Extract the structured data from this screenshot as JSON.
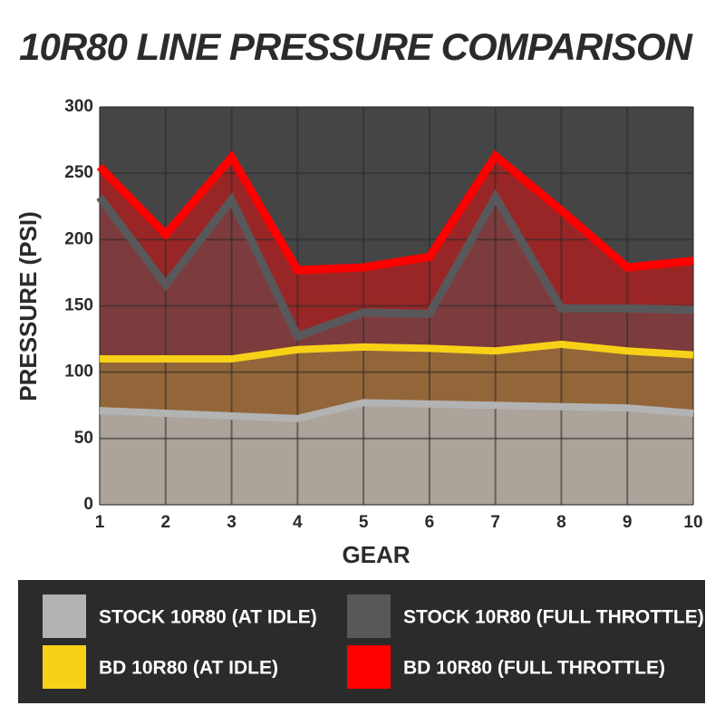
{
  "chart_data": {
    "type": "area",
    "title": "10R80 LINE PRESSURE COMPARISON",
    "x_label": "GEAR",
    "y_label": "PRESSURE (PSI)",
    "x": [
      1,
      2,
      3,
      4,
      5,
      6,
      7,
      8,
      9,
      10
    ],
    "xlim": [
      1,
      10
    ],
    "xticks": [
      1,
      2,
      3,
      4,
      5,
      6,
      7,
      8,
      9,
      10
    ],
    "ylim": [
      0,
      300
    ],
    "yticks": [
      0,
      50,
      100,
      150,
      200,
      250,
      300
    ],
    "grid": true,
    "series": [
      {
        "name": "STOCK 10R80 (AT IDLE)",
        "color": "#b3b3b3",
        "values": [
          71,
          69,
          67,
          65,
          77,
          76,
          75,
          74,
          73,
          69
        ]
      },
      {
        "name": "STOCK 10R80 (FULL THROTTLE)",
        "color": "#58585b",
        "values": [
          232,
          166,
          230,
          127,
          145,
          144,
          232,
          148,
          148,
          147
        ]
      },
      {
        "name": "BD 10R80 (AT IDLE)",
        "color": "#f7d117",
        "values": [
          110,
          110,
          110,
          117,
          119,
          118,
          116,
          121,
          116,
          113
        ]
      },
      {
        "name": "BD 10R80 (FULL THROTTLE)",
        "color": "#ff0000",
        "values": [
          255,
          204,
          262,
          177,
          179,
          187,
          263,
          222,
          179,
          184
        ]
      }
    ]
  }
}
